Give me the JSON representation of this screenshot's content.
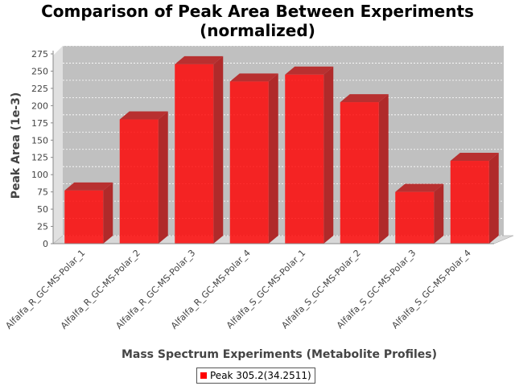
{
  "chart_data": {
    "type": "bar",
    "title_line1": "Comparison of Peak Area Between Experiments",
    "title_line2": "(normalized)",
    "xlabel": "Mass Spectrum Experiments (Metabolite Profiles)",
    "ylabel": "Peak Area (1e-3)",
    "categories": [
      "Alfalfa_R_GC-MS-Polar_1",
      "Alfalfa_R_GC-MS-Polar_2",
      "Alfalfa_R_GC-MS-Polar_3",
      "Alfalfa_R_GC-MS-Polar_4",
      "Alfalfa_S_GC-MS-Polar_1",
      "Alfalfa_S_GC-MS-Polar_2",
      "Alfalfa_S_GC-MS-Polar_3",
      "Alfalfa_S_GC-MS-Polar_4"
    ],
    "series": [
      {
        "name": "Peak 305.2(34.2511)",
        "color": "#ff0000",
        "values": [
          77,
          180,
          260,
          235,
          245,
          205,
          75,
          120
        ]
      }
    ],
    "ylim": [
      0,
      275
    ],
    "yticks": [
      0,
      25,
      50,
      75,
      100,
      125,
      150,
      175,
      200,
      225,
      250,
      275
    ],
    "grid": true,
    "legend_position": "bottom-center",
    "style": "3d-bar",
    "plot_background": "#c0c0c0"
  }
}
